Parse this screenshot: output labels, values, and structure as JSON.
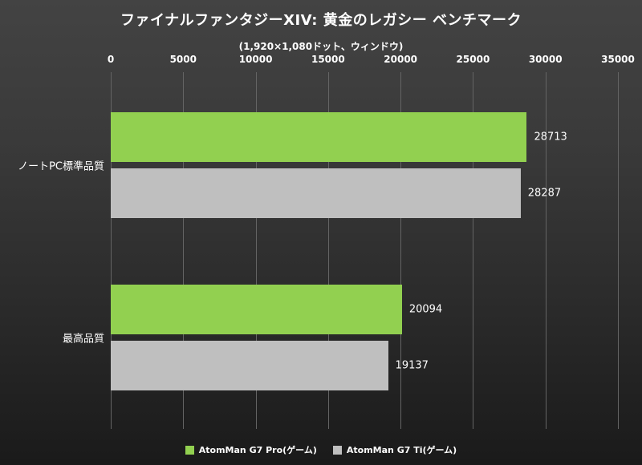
{
  "chart_data": {
    "type": "bar",
    "orientation": "horizontal",
    "title": "ファイナルファンタジーXIV: 黄金のレガシー ベンチマーク",
    "subtitle": "(1,920×1,080ドット、ウィンドウ)",
    "categories": [
      "ノートPC標準品質",
      "最高品質"
    ],
    "series": [
      {
        "name": "AtomMan G7 Pro(ゲーム)",
        "color": "#92d050",
        "values": [
          28713,
          20094
        ]
      },
      {
        "name": "AtomMan G7 Ti(ゲーム)",
        "color": "#bfbfbf",
        "values": [
          28287,
          19137
        ]
      }
    ],
    "xlim": [
      0,
      35000
    ],
    "xticks": [
      0,
      5000,
      10000,
      15000,
      20000,
      25000,
      30000,
      35000
    ],
    "grid": true,
    "legend_position": "bottom",
    "value_labels": true,
    "colors": {
      "background_top": "#434343",
      "background_bottom": "#1a1a1a",
      "text": "#ffffff",
      "gridline": "#646464"
    }
  }
}
